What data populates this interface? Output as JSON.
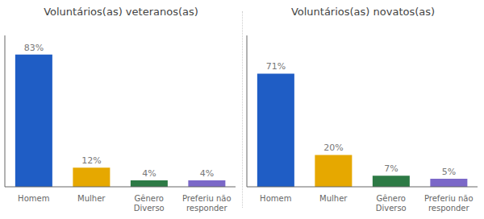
{
  "chart_data": [
    {
      "type": "bar",
      "title": "Voluntários(as) veteranos(as)",
      "categories": [
        "Homem",
        "Mulher",
        "Gênero\nDiverso",
        "Preferiu não\nresponder"
      ],
      "values": [
        83,
        12,
        4,
        4
      ],
      "value_labels": [
        "83%",
        "12%",
        "4%",
        "4%"
      ],
      "data_labels": true,
      "colors": [
        "#1F5DC5",
        "#E6A800",
        "#2D7A45",
        "#7B68C8"
      ],
      "ylim": [
        0,
        95
      ],
      "yticks": [],
      "tick_labels": "x",
      "grid": false
    },
    {
      "type": "bar",
      "title": "Voluntários(as) novatos(as)",
      "categories": [
        "Homem",
        "Mulher",
        "Gênero\nDiverso",
        "Preferiu não\nresponder"
      ],
      "values": [
        71,
        20,
        7,
        5
      ],
      "value_labels": [
        "71%",
        "20%",
        "7%",
        "5%"
      ],
      "data_labels": true,
      "colors": [
        "#1F5DC5",
        "#E6A800",
        "#2D7A45",
        "#7B68C8"
      ],
      "ylim": [
        0,
        95
      ],
      "yticks": [],
      "tick_labels": "x",
      "grid": false
    }
  ]
}
